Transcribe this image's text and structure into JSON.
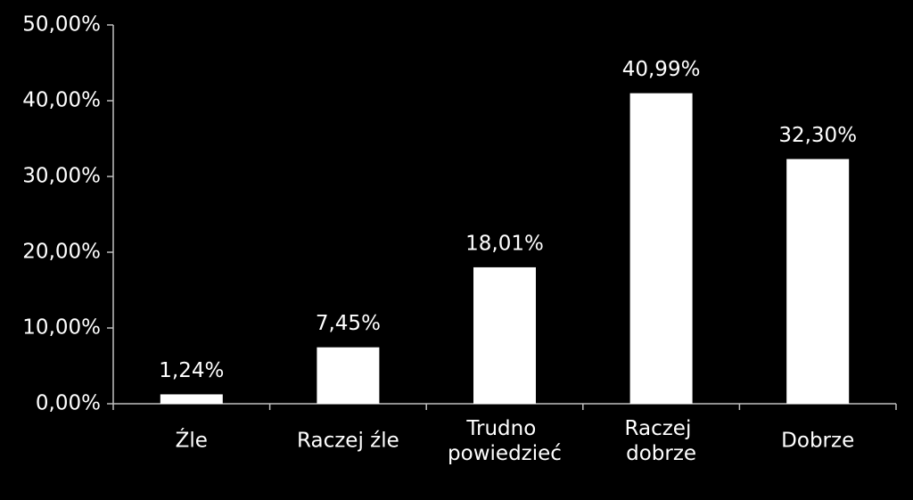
{
  "chart_data": {
    "type": "bar",
    "categories": [
      "Źle",
      "Raczej źle",
      "Trudno\npowiedzieć",
      "Raczej\ndobrze",
      "Dobrze"
    ],
    "values": [
      1.24,
      7.45,
      18.01,
      40.99,
      32.3
    ],
    "value_labels": [
      "1,24%",
      "7,45%",
      "18,01%",
      "40,99%",
      "32,30%"
    ],
    "color": "#ffffff",
    "ylim": [
      0,
      50
    ],
    "yticks": [
      {
        "value": 0,
        "label": "0,00%"
      },
      {
        "value": 10,
        "label": "10,00%"
      },
      {
        "value": 20,
        "label": "20,00%"
      },
      {
        "value": 30,
        "label": "30,00%"
      },
      {
        "value": 40,
        "label": "40,00%"
      },
      {
        "value": 50,
        "label": "50,00%"
      }
    ],
    "grid": false
  }
}
